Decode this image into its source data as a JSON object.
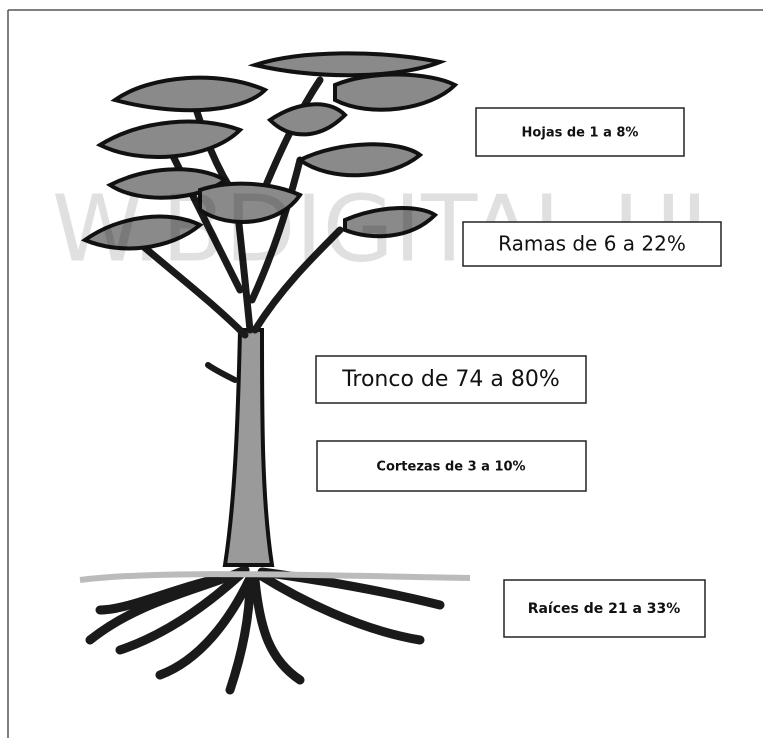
{
  "watermark": "W.BDIGITAL.UI",
  "labels": {
    "leaves": "Hojas de 1 a 8%",
    "branches": "Ramas de 6 a 22%",
    "trunk": "Tronco de 74 a 80%",
    "bark": "Cortezas de 3 a 10%",
    "roots": "Raíces de 21 a 33%"
  }
}
